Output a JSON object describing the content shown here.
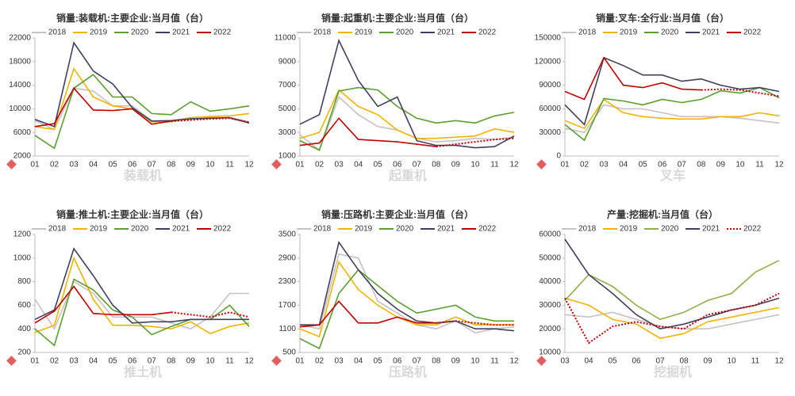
{
  "chart_data": [
    {
      "type": "line",
      "title": "销量:装载机:主要企业:当月值（台）",
      "watermark": "装载机",
      "categories": [
        "01",
        "02",
        "03",
        "04",
        "05",
        "06",
        "07",
        "08",
        "09",
        "10",
        "11",
        "12"
      ],
      "ylim": [
        2000,
        22000
      ],
      "yticks": [
        2000,
        6000,
        10000,
        14000,
        18000,
        22000
      ],
      "series": [
        {
          "name": "2018",
          "color": "#c8c0c4",
          "values": [
            8000,
            6500,
            13500,
            13000,
            10500,
            10500,
            8000,
            8000,
            8500,
            8500,
            8500,
            7800
          ]
        },
        {
          "name": "2019",
          "color": "#f0b400",
          "values": [
            7000,
            6500,
            16800,
            12000,
            10500,
            10000,
            7800,
            7800,
            8500,
            8700,
            8800,
            9200
          ]
        },
        {
          "name": "2020",
          "color": "#5a9e2f",
          "values": [
            5500,
            3300,
            13500,
            15800,
            12000,
            12000,
            9200,
            9000,
            11200,
            9600,
            10000,
            10500
          ]
        },
        {
          "name": "2021",
          "color": "#3f4060",
          "values": [
            8200,
            7000,
            21200,
            16400,
            14200,
            10200,
            7900,
            8000,
            8300,
            8400,
            8500,
            7600
          ]
        },
        {
          "name": "2022",
          "color": "#c00000",
          "values": [
            7000,
            7500,
            13500,
            9800,
            9700,
            10000,
            7400,
            7900,
            null,
            null,
            null,
            null
          ]
        },
        {
          "color": "#c00000",
          "line_style": "dotted",
          "values": [
            null,
            null,
            null,
            null,
            null,
            null,
            null,
            7900,
            8100,
            8300,
            8400,
            7700
          ]
        }
      ]
    },
    {
      "type": "line",
      "title": "销量:起重机:主要企业:当月值（台）",
      "watermark": "起重机",
      "categories": [
        "01",
        "02",
        "03",
        "04",
        "05",
        "06",
        "07",
        "08",
        "09",
        "10",
        "11",
        "12"
      ],
      "ylim": [
        1000,
        11000
      ],
      "yticks": [
        1000,
        3000,
        5000,
        7000,
        9000,
        11000
      ],
      "series": [
        {
          "name": "2018",
          "color": "#c8c0c4",
          "values": [
            2800,
            1500,
            6000,
            4500,
            3500,
            3200,
            2500,
            2200,
            2300,
            2500,
            2400,
            2600
          ]
        },
        {
          "name": "2019",
          "color": "#f0b400",
          "values": [
            2500,
            3000,
            6600,
            5200,
            4500,
            3200,
            2500,
            2500,
            2600,
            2700,
            3300,
            3000
          ]
        },
        {
          "name": "2020",
          "color": "#5a9e2f",
          "values": [
            2300,
            1500,
            6500,
            6800,
            6600,
            5200,
            4200,
            3800,
            4000,
            3800,
            4400,
            4700
          ]
        },
        {
          "name": "2021",
          "color": "#3f4060",
          "values": [
            3700,
            4500,
            10800,
            7400,
            5200,
            6000,
            2300,
            1900,
            1900,
            1700,
            1800,
            2700
          ]
        },
        {
          "name": "2022",
          "color": "#c00000",
          "values": [
            1900,
            2100,
            4200,
            2400,
            2300,
            2200,
            2000,
            1800,
            null,
            null,
            null,
            null
          ]
        },
        {
          "color": "#c00000",
          "line_style": "dotted",
          "values": [
            null,
            null,
            null,
            null,
            null,
            null,
            null,
            1800,
            2000,
            2200,
            2400,
            2500
          ]
        }
      ]
    },
    {
      "type": "line",
      "title": "销量:叉车:全行业:当月值（台）",
      "watermark": "叉车",
      "categories": [
        "01",
        "02",
        "03",
        "04",
        "05",
        "06",
        "07",
        "08",
        "09",
        "10",
        "11",
        "12"
      ],
      "ylim": [
        0,
        150000
      ],
      "yticks": [
        0,
        30000,
        60000,
        90000,
        120000,
        150000
      ],
      "series": [
        {
          "name": "2018",
          "color": "#c8c0c4",
          "values": [
            35000,
            30000,
            65000,
            60000,
            60000,
            55000,
            50000,
            50000,
            50000,
            48000,
            45000,
            42000
          ]
        },
        {
          "name": "2019",
          "color": "#f0b400",
          "values": [
            45000,
            35000,
            72000,
            55000,
            50000,
            48000,
            47000,
            47000,
            50000,
            50000,
            55000,
            51000
          ]
        },
        {
          "name": "2020",
          "color": "#5a9e2f",
          "values": [
            40000,
            20000,
            73000,
            70000,
            65000,
            72000,
            68000,
            72000,
            83000,
            80000,
            87000,
            74000
          ]
        },
        {
          "name": "2021",
          "color": "#3f4060",
          "values": [
            65000,
            40000,
            125000,
            115000,
            103000,
            103000,
            95000,
            98000,
            90000,
            85000,
            87000,
            82000
          ]
        },
        {
          "name": "2022",
          "color": "#c00000",
          "values": [
            82000,
            72000,
            125000,
            90000,
            87000,
            93000,
            85000,
            84000,
            null,
            null,
            null,
            null
          ]
        },
        {
          "color": "#c00000",
          "line_style": "dotted",
          "values": [
            null,
            null,
            null,
            null,
            null,
            null,
            null,
            84000,
            85000,
            84000,
            80000,
            76000
          ]
        }
      ]
    },
    {
      "type": "line",
      "title": "销量:推土机:主要企业:当月值（台）",
      "watermark": "推土机",
      "categories": [
        "01",
        "02",
        "03",
        "04",
        "05",
        "06",
        "07",
        "08",
        "09",
        "10",
        "11",
        "12"
      ],
      "ylim": [
        200,
        1200
      ],
      "yticks": [
        200,
        400,
        600,
        800,
        1000,
        1200
      ],
      "series": [
        {
          "name": "2018",
          "color": "#c8c0c4",
          "values": [
            650,
            400,
            800,
            700,
            500,
            500,
            500,
            450,
            400,
            500,
            700,
            700
          ]
        },
        {
          "name": "2019",
          "color": "#f0b400",
          "values": [
            370,
            430,
            1000,
            650,
            430,
            430,
            420,
            400,
            460,
            360,
            420,
            450
          ]
        },
        {
          "name": "2020",
          "color": "#5a9e2f",
          "values": [
            400,
            260,
            820,
            730,
            560,
            500,
            350,
            420,
            480,
            480,
            600,
            420
          ]
        },
        {
          "name": "2021",
          "color": "#3f4060",
          "values": [
            480,
            560,
            1080,
            850,
            600,
            450,
            460,
            460,
            480,
            480,
            480,
            480
          ]
        },
        {
          "name": "2022",
          "color": "#c00000",
          "values": [
            450,
            550,
            760,
            530,
            520,
            520,
            520,
            540,
            null,
            null,
            null,
            null
          ]
        },
        {
          "color": "#c00000",
          "line_style": "dotted",
          "values": [
            null,
            null,
            null,
            null,
            null,
            null,
            null,
            540,
            520,
            500,
            540,
            500
          ]
        }
      ]
    },
    {
      "type": "line",
      "title": "销量:压路机:主要企业:当月值（台）",
      "watermark": "压路机",
      "categories": [
        "01",
        "02",
        "03",
        "04",
        "05",
        "06",
        "07",
        "08",
        "09",
        "10",
        "11",
        "12"
      ],
      "ylim": [
        500,
        3500
      ],
      "yticks": [
        500,
        1100,
        1700,
        2300,
        2900,
        3500
      ],
      "series": [
        {
          "name": "2018",
          "color": "#c8c0c4",
          "values": [
            1200,
            1100,
            3000,
            2900,
            1800,
            1500,
            1200,
            1100,
            1300,
            1000,
            1100,
            1150
          ]
        },
        {
          "name": "2019",
          "color": "#f0b400",
          "values": [
            1100,
            900,
            2800,
            2100,
            1700,
            1400,
            1200,
            1200,
            1400,
            1200,
            1200,
            1200
          ]
        },
        {
          "name": "2020",
          "color": "#5a9e2f",
          "values": [
            850,
            600,
            2000,
            2600,
            2200,
            1800,
            1500,
            1600,
            1700,
            1400,
            1300,
            1300
          ]
        },
        {
          "name": "2021",
          "color": "#3f4060",
          "values": [
            1200,
            1200,
            3300,
            2600,
            2000,
            1600,
            1300,
            1250,
            1300,
            1100,
            1100,
            1050
          ]
        },
        {
          "name": "2022",
          "color": "#c00000",
          "values": [
            1150,
            1200,
            1800,
            1250,
            1250,
            1400,
            1250,
            1250,
            null,
            null,
            null,
            null
          ]
        },
        {
          "color": "#c00000",
          "line_style": "dotted",
          "values": [
            null,
            null,
            null,
            null,
            null,
            null,
            null,
            1250,
            1300,
            1250,
            1200,
            1200
          ]
        }
      ]
    },
    {
      "type": "line",
      "title": "产量:挖掘机:当月值（台）",
      "watermark": "挖掘机",
      "categories": [
        "03",
        "04",
        "05",
        "06",
        "07",
        "08",
        "09",
        "10",
        "11",
        "12"
      ],
      "ylim": [
        10000,
        60000
      ],
      "yticks": [
        10000,
        20000,
        30000,
        40000,
        50000,
        60000
      ],
      "series": [
        {
          "name": "2018",
          "color": "#c8c0c4",
          "values": [
            26000,
            25000,
            27000,
            24000,
            21000,
            20000,
            20000,
            22000,
            24000,
            26000
          ]
        },
        {
          "name": "2019",
          "color": "#f0b400",
          "values": [
            33000,
            30000,
            24000,
            22000,
            16000,
            18000,
            23000,
            25000,
            27000,
            29000
          ]
        },
        {
          "name": "2020",
          "color": "#8db04a",
          "values": [
            32000,
            43000,
            38000,
            30000,
            24000,
            27000,
            32000,
            35000,
            44000,
            49000
          ]
        },
        {
          "name": "2021",
          "color": "#3f4060",
          "values": [
            58000,
            43000,
            35000,
            26000,
            20000,
            22000,
            25000,
            28000,
            30000,
            33000
          ]
        },
        {
          "name": "2022",
          "color": "#c00000",
          "line_style": "dotted",
          "values": [
            33000,
            14000,
            21000,
            23000,
            21000,
            20000,
            26000,
            28000,
            30000,
            35000
          ]
        }
      ]
    }
  ]
}
